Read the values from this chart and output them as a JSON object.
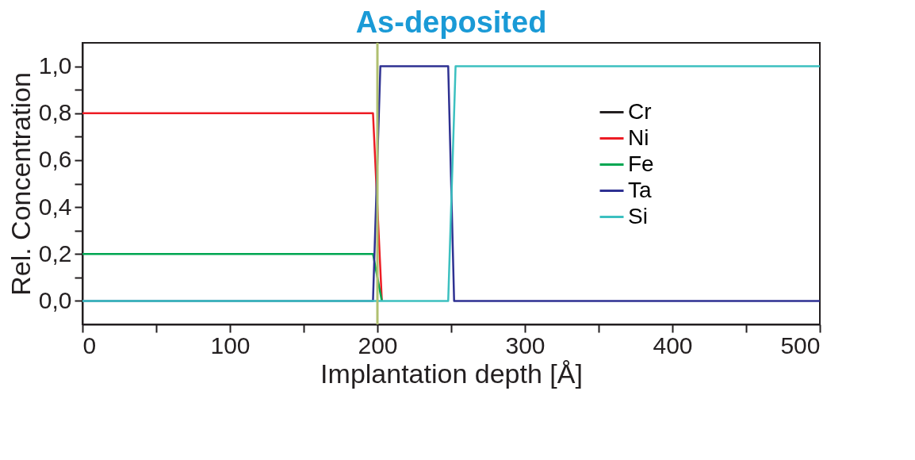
{
  "chart_data": {
    "type": "line",
    "title": "As-deposited",
    "xlabel": "Implantation depth [Å]",
    "ylabel": "Rel. Concentration",
    "xlim": [
      0,
      500
    ],
    "ylim": [
      -0.1,
      1.1
    ],
    "xticks": [
      0,
      {
        "value": 50,
        "label": null
      },
      100,
      {
        "value": 150,
        "label": null
      },
      200,
      {
        "value": 250,
        "label": null
      },
      300,
      {
        "value": 350,
        "label": null
      },
      400,
      {
        "value": 450,
        "label": null
      },
      500
    ],
    "yticks": [
      {
        "value": 0.0,
        "label": "0,0"
      },
      {
        "value": 0.1,
        "label": null
      },
      {
        "value": 0.2,
        "label": "0,2"
      },
      {
        "value": 0.3,
        "label": null
      },
      {
        "value": 0.4,
        "label": "0,4"
      },
      {
        "value": 0.5,
        "label": null
      },
      {
        "value": 0.6,
        "label": "0,6"
      },
      {
        "value": 0.7,
        "label": null
      },
      {
        "value": 0.8,
        "label": "0,8"
      },
      {
        "value": 0.9,
        "label": null
      },
      {
        "value": 1.0,
        "label": "1,0"
      }
    ],
    "series": [
      {
        "name": "Cr",
        "color": "#231f20"
      },
      {
        "name": "Ni",
        "color": "#ed1c24",
        "x": [
          0,
          197,
          203
        ],
        "values": [
          0.8,
          0.8,
          0
        ]
      },
      {
        "name": "Fe",
        "color": "#00a651",
        "x": [
          0,
          197,
          203
        ],
        "values": [
          0.2,
          0.2,
          0
        ]
      },
      {
        "name": "Ta",
        "color": "#2e3192",
        "x": [
          0,
          197,
          202,
          248,
          252,
          500
        ],
        "values": [
          0,
          0,
          1,
          1,
          0,
          0
        ]
      },
      {
        "name": "Si",
        "color": "#3cc0c0",
        "x": [
          0,
          248,
          253,
          500
        ],
        "values": [
          0,
          0,
          1,
          1
        ]
      }
    ],
    "ref_lines": [
      {
        "axis": "x",
        "value": 200,
        "color": "#b0c070"
      }
    ],
    "legend": "right",
    "grid": false,
    "marker": "none",
    "line_style": "solid"
  }
}
